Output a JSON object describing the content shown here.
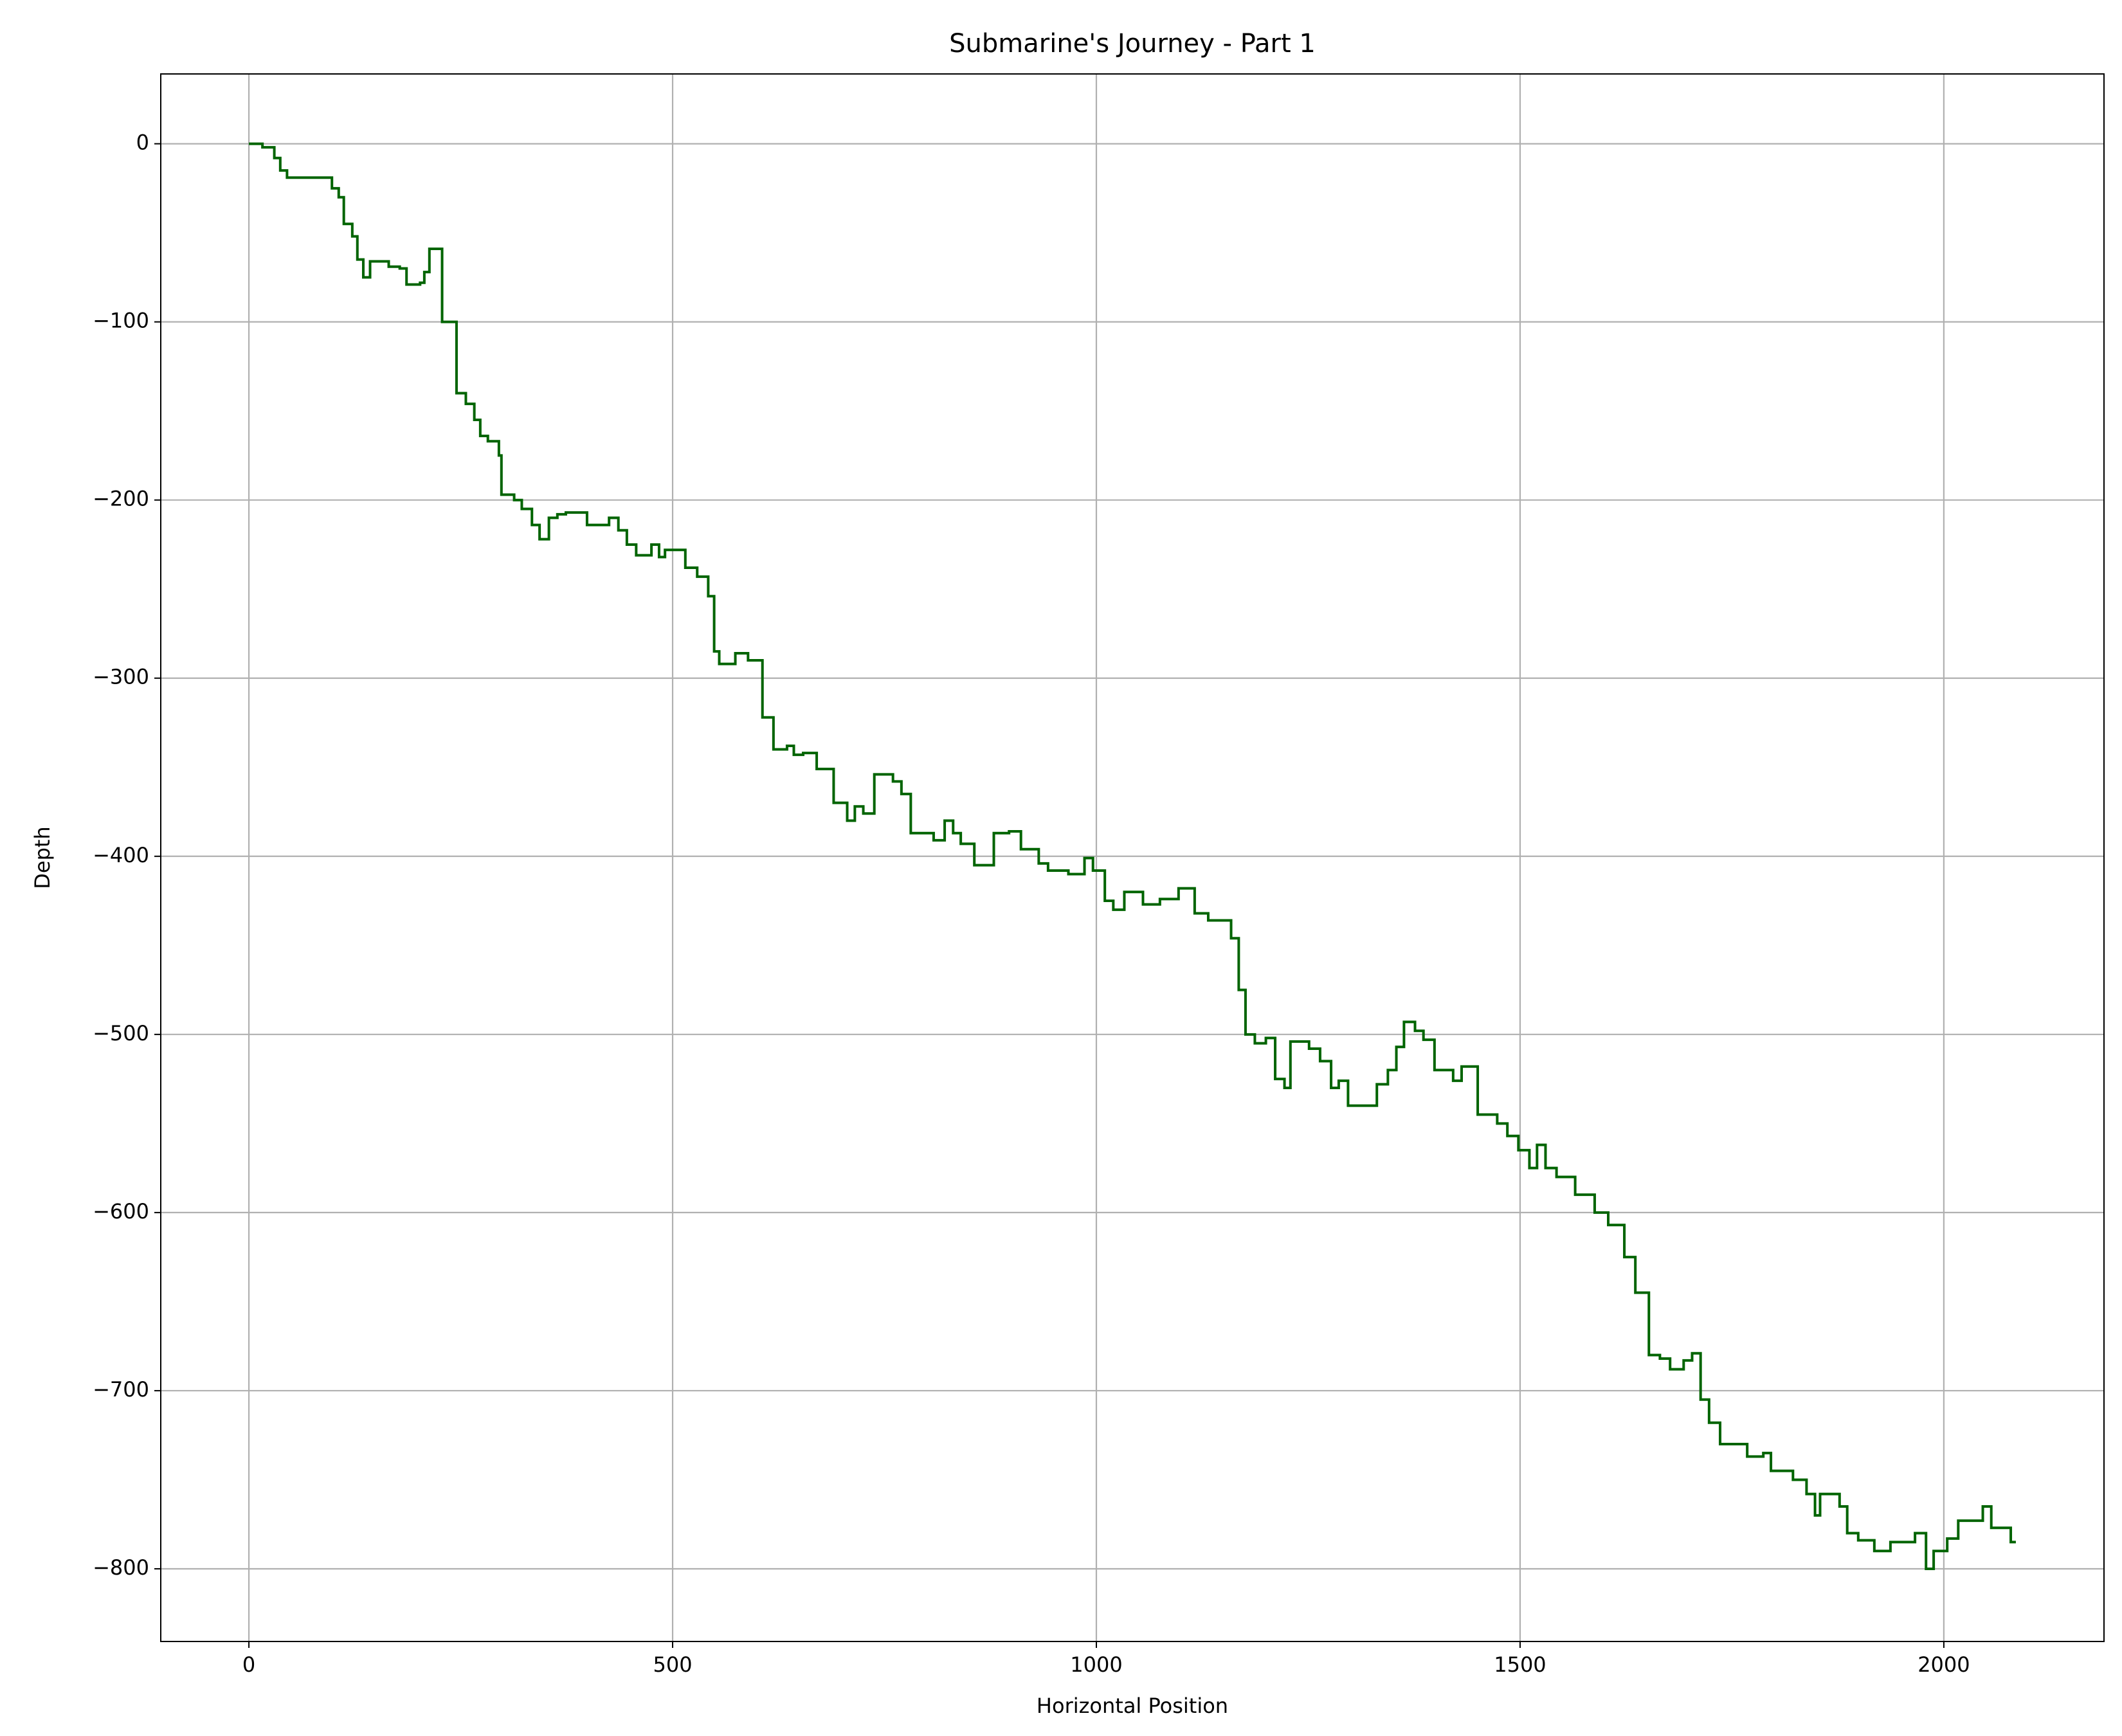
{
  "chart_data": {
    "type": "line",
    "drawstyle": "steps-post",
    "title": "Submarine's Journey - Part 1",
    "x_label": "Horizontal Position",
    "y_label": "Depth",
    "xlim": [
      -104,
      2189
    ],
    "ylim": [
      -840.8,
      39.2
    ],
    "xticks": [
      0,
      500,
      1000,
      1500,
      2000
    ],
    "yticks": [
      0,
      {
        "value": -100,
        "label": "−100"
      },
      {
        "value": -200,
        "label": "−200"
      },
      {
        "value": -300,
        "label": "−300"
      },
      {
        "value": -400,
        "label": "−400"
      },
      {
        "value": -500,
        "label": "−500"
      },
      {
        "value": -600,
        "label": "−600"
      },
      {
        "value": -700,
        "label": "−700"
      },
      {
        "value": -800,
        "label": "−800"
      }
    ],
    "grid": true,
    "series": [
      {
        "color": "#006400",
        "x": [
          0,
          16,
          30,
          37,
          45,
          98,
          106,
          112,
          122,
          128,
          135,
          143,
          165,
          178,
          186,
          202,
          207,
          213,
          228,
          245,
          256,
          266,
          273,
          282,
          295,
          298,
          313,
          322,
          334,
          343,
          354,
          364,
          374,
          399,
          425,
          436,
          446,
          457,
          475,
          484,
          491,
          515,
          529,
          542,
          549,
          555,
          574,
          589,
          606,
          619,
          635,
          643,
          654,
          670,
          690,
          706,
          715,
          725,
          738,
          760,
          770,
          781,
          808,
          821,
          831,
          840,
          856,
          879,
          897,
          911,
          932,
          943,
          967,
          986,
          996,
          1010,
          1020,
          1033,
          1055,
          1075,
          1097,
          1116,
          1132,
          1159,
          1168,
          1176,
          1187,
          1200,
          1211,
          1222,
          1229,
          1251,
          1264,
          1277,
          1286,
          1297,
          1331,
          1344,
          1354,
          1363,
          1376,
          1386,
          1399,
          1421,
          1431,
          1450,
          1473,
          1485,
          1498,
          1511,
          1520,
          1530,
          1543,
          1565,
          1588,
          1604,
          1623,
          1636,
          1652,
          1665,
          1677,
          1693,
          1703,
          1713,
          1723,
          1736,
          1768,
          1787,
          1796,
          1822,
          1838,
          1848,
          1854,
          1877,
          1886,
          1899,
          1918,
          1937,
          1966,
          1979,
          1988,
          2004,
          2017,
          2046,
          2056,
          2079,
          2085
        ],
        "values": [
          0,
          -2,
          -8,
          -15,
          -19,
          -25,
          -30,
          -45,
          -52,
          -65,
          -75,
          -66,
          -69,
          -70,
          -79,
          -78,
          -72,
          -59,
          -100,
          -140,
          -146,
          -155,
          -164,
          -167,
          -175,
          -197,
          -200,
          -205,
          -214,
          -222,
          -210,
          -208,
          -207,
          -214,
          -210,
          -217,
          -225,
          -231,
          -225,
          -232,
          -228,
          -238,
          -243,
          -254,
          -285,
          -292,
          -286,
          -290,
          -322,
          -340,
          -338,
          -343,
          -342,
          -351,
          -370,
          -380,
          -372,
          -376,
          -354,
          -358,
          -365,
          -387,
          -391,
          -380,
          -387,
          -393,
          -405,
          -387,
          -386,
          -396,
          -404,
          -408,
          -410,
          -401,
          -408,
          -425,
          -430,
          -420,
          -427,
          -424,
          -418,
          -432,
          -436,
          -446,
          -475,
          -500,
          -505,
          -502,
          -525,
          -530,
          -504,
          -508,
          -515,
          -530,
          -526,
          -540,
          -528,
          -520,
          -507,
          -493,
          -498,
          -503,
          -520,
          -526,
          -518,
          -545,
          -550,
          -557,
          -565,
          -575,
          -562,
          -575,
          -580,
          -590,
          -600,
          -607,
          -625,
          -645,
          -680,
          -682,
          -688,
          -683,
          -679,
          -705,
          -718,
          -730,
          -737,
          -735,
          -745,
          -750,
          -758,
          -770,
          -758,
          -765,
          -780,
          -784,
          -790,
          -785,
          -780,
          -800,
          -790,
          -783,
          -773,
          -765,
          -777,
          -785,
          -785
        ]
      }
    ]
  }
}
